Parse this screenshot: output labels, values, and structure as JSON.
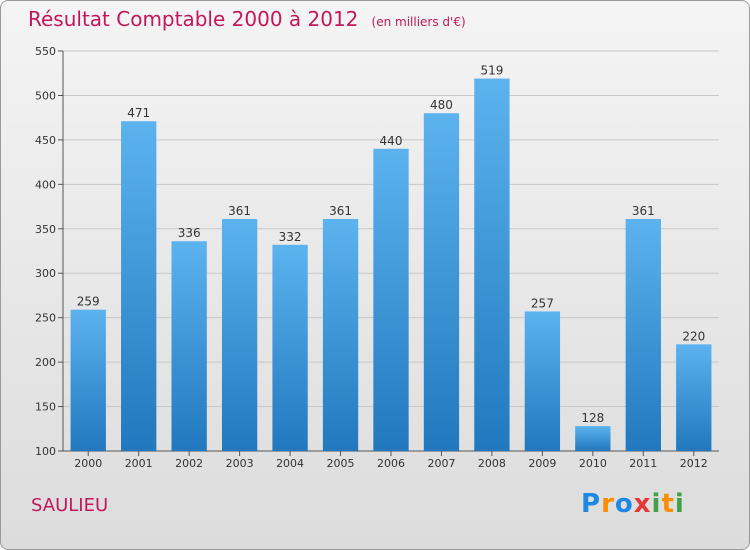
{
  "header": {
    "title": "Résultat Comptable 2000 à 2012",
    "unit": "(en milliers d'€)"
  },
  "footer": {
    "town": "SAULIEU",
    "logo_letters": [
      "P",
      "r",
      "o",
      "x",
      "i",
      "t",
      "i"
    ]
  },
  "colors": {
    "bar": "#3e9fe0",
    "title": "#c2185b",
    "grid": "#c8c8c8"
  },
  "chart_data": {
    "type": "bar",
    "title": "Résultat Comptable 2000 à 2012",
    "ylabel": "",
    "xlabel": "",
    "ylim": [
      100,
      550
    ],
    "ytick_step": 50,
    "grid": true,
    "categories": [
      "2000",
      "2001",
      "2002",
      "2003",
      "2004",
      "2005",
      "2006",
      "2007",
      "2008",
      "2009",
      "2010",
      "2011",
      "2012"
    ],
    "values": [
      259,
      471,
      336,
      361,
      332,
      361,
      440,
      480,
      519,
      257,
      128,
      361,
      220
    ]
  }
}
